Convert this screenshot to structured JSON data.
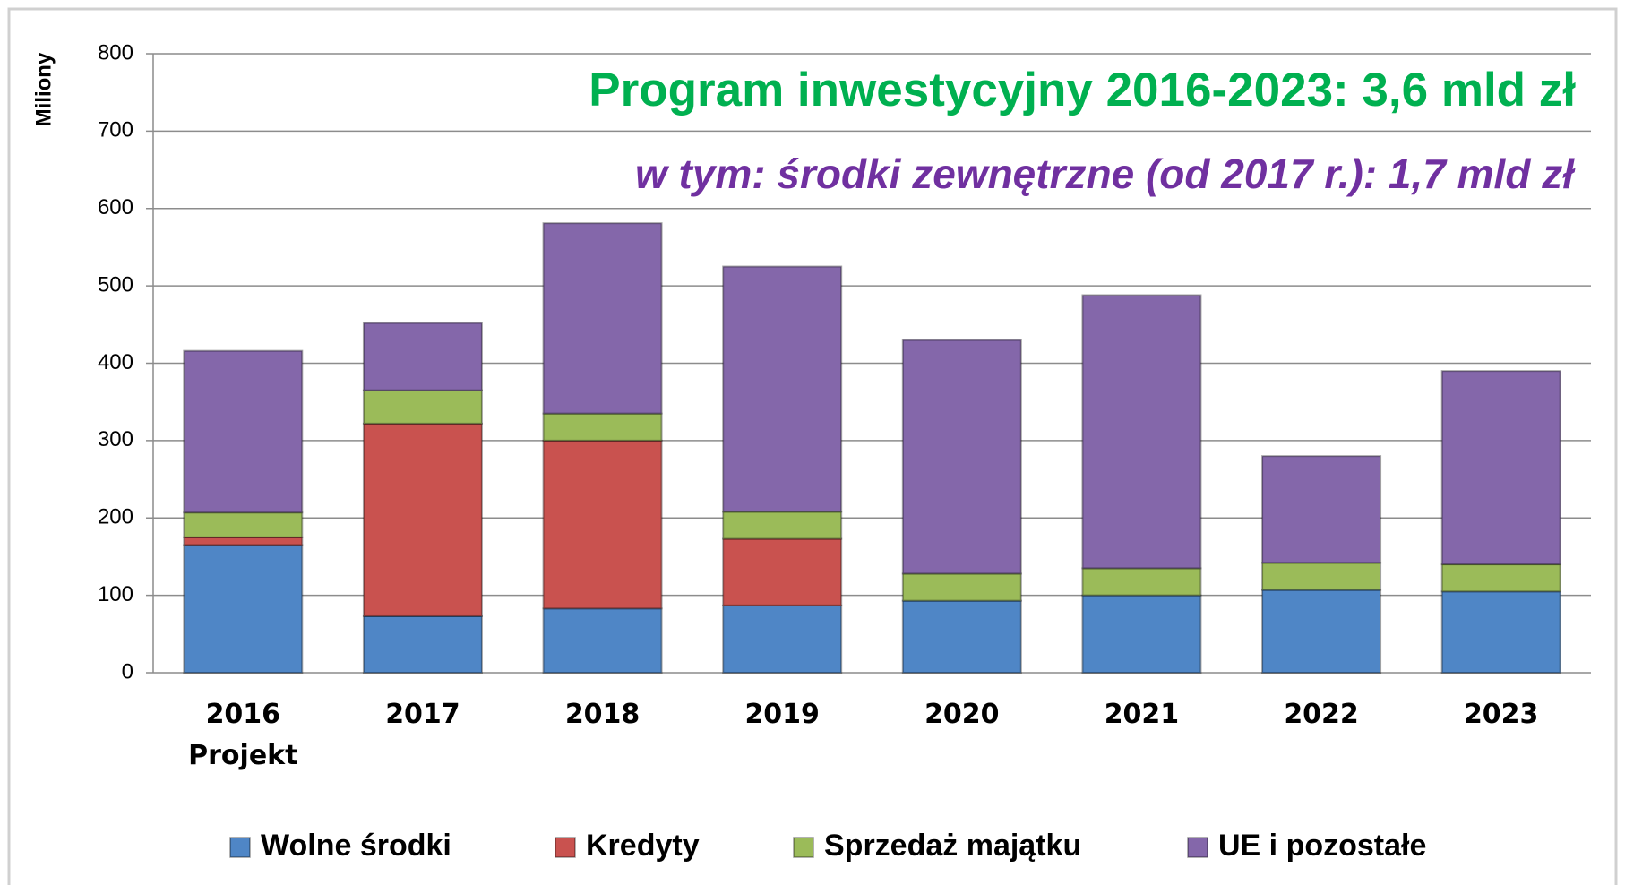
{
  "chart_data": {
    "type": "stacked_bar",
    "annotations": [
      "Program inwestycyjny 2016-2023: 3,6 mld zł",
      "w tym: środki zewnętrzne (od 2017 r.): 1,7 mld zł"
    ],
    "y_label": "Miliony",
    "categories": [
      "2016\nProjekt",
      "2017",
      "2018",
      "2019",
      "2020",
      "2021",
      "2022",
      "2023"
    ],
    "series": [
      {
        "name": "Wolne środki",
        "color": "#4f86c6",
        "values": [
          165,
          73,
          83,
          87,
          93,
          100,
          107,
          105
        ]
      },
      {
        "name": "Kredyty",
        "color": "#c9524f",
        "values": [
          10,
          249,
          217,
          86,
          0,
          0,
          0,
          0
        ]
      },
      {
        "name": "Sprzedaż majątku",
        "color": "#9bbb59",
        "values": [
          32,
          43,
          35,
          35,
          35,
          35,
          35,
          35
        ]
      },
      {
        "name": "UE i pozostałe",
        "color": "#8467aa",
        "values": [
          209,
          87,
          246,
          317,
          302,
          353,
          138,
          250
        ]
      }
    ],
    "ylim": [
      0,
      800
    ],
    "yticks": [
      0,
      100,
      200,
      300,
      400,
      500,
      600,
      700,
      800
    ],
    "grid": true,
    "legend": "bottom"
  }
}
